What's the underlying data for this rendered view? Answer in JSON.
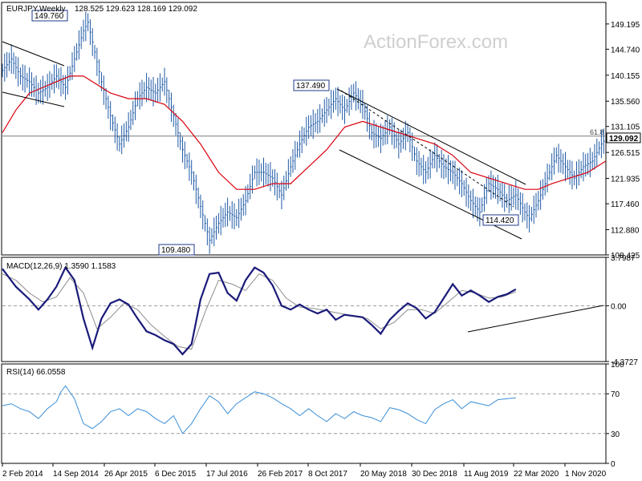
{
  "chart_data": {
    "type": "line",
    "watermark": "ActionForex.com",
    "colors": {
      "price": "#1f5aa6",
      "ma": "#d8000c",
      "macd": "#1a1a7a",
      "signal": "#8c8c8c",
      "rsi": "#3a8fd9",
      "trend": "#000000",
      "panel_border": "#000000",
      "grid_dashed": "#9a9a9a"
    },
    "x_axis": {
      "tick_labels": [
        "2 Feb 2014",
        "14 Sep 2014",
        "26 Apr 2015",
        "6 Dec 2015",
        "17 Jul 2016",
        "26 Feb 2017",
        "8 Oct 2017",
        "20 May 2018",
        "30 Dec 2018",
        "11 Aug 2019",
        "22 Mar 2020",
        "1 Nov 2020"
      ]
    },
    "price_panel": {
      "title": "EURJPY,Weekly",
      "ohlc_text": "128.525 129.623 128.169 129.092",
      "y_ticks": [
        "149.195",
        "144.740",
        "140.155",
        "135.560",
        "131.105",
        "126.515",
        "121.935",
        "117.460",
        "112.880",
        "108.425"
      ],
      "ylim": [
        108.425,
        153.0
      ],
      "last_price": "129.092",
      "fib_label": "61.8",
      "fib_level": 129.4,
      "annotations": [
        {
          "text": "149.760",
          "value": 149.76
        },
        {
          "text": "109.480",
          "value": 109.48
        },
        {
          "text": "137.490",
          "value": 137.49
        },
        {
          "text": "114.420",
          "value": 114.42
        }
      ],
      "close_series": [
        [
          0,
          141
        ],
        [
          2,
          143
        ],
        [
          4,
          140
        ],
        [
          6,
          139
        ],
        [
          8,
          137
        ],
        [
          10,
          138
        ],
        [
          12,
          140
        ],
        [
          14,
          138
        ],
        [
          16,
          143
        ],
        [
          18,
          148
        ],
        [
          19,
          149.5
        ],
        [
          20,
          146
        ],
        [
          22,
          139
        ],
        [
          24,
          133
        ],
        [
          26,
          128
        ],
        [
          28,
          131
        ],
        [
          30,
          136
        ],
        [
          32,
          138
        ],
        [
          34,
          137
        ],
        [
          36,
          139
        ],
        [
          38,
          133
        ],
        [
          40,
          127
        ],
        [
          42,
          123
        ],
        [
          44,
          117
        ],
        [
          46,
          111
        ],
        [
          48,
          114
        ],
        [
          50,
          116
        ],
        [
          52,
          115
        ],
        [
          54,
          118
        ],
        [
          56,
          123
        ],
        [
          58,
          123
        ],
        [
          60,
          122
        ],
        [
          62,
          119
        ],
        [
          64,
          124
        ],
        [
          66,
          128
        ],
        [
          68,
          131
        ],
        [
          70,
          132
        ],
        [
          72,
          134
        ],
        [
          74,
          136
        ],
        [
          76,
          134
        ],
        [
          78,
          137
        ],
        [
          80,
          135
        ],
        [
          82,
          130
        ],
        [
          84,
          129
        ],
        [
          86,
          131
        ],
        [
          88,
          128
        ],
        [
          90,
          130
        ],
        [
          92,
          125
        ],
        [
          94,
          123
        ],
        [
          96,
          126
        ],
        [
          98,
          124
        ],
        [
          100,
          123
        ],
        [
          102,
          121
        ],
        [
          104,
          118
        ],
        [
          106,
          116
        ],
        [
          108,
          121
        ],
        [
          110,
          120
        ],
        [
          112,
          118
        ],
        [
          114,
          119
        ],
        [
          116,
          116
        ],
        [
          117,
          114.8
        ],
        [
          119,
          118
        ],
        [
          121,
          122
        ],
        [
          123,
          126
        ],
        [
          125,
          124
        ],
        [
          127,
          122
        ],
        [
          129,
          124
        ],
        [
          131,
          125
        ],
        [
          133,
          128
        ],
        [
          134,
          129
        ]
      ],
      "ma_series": [
        [
          0,
          130
        ],
        [
          3,
          134
        ],
        [
          6,
          137
        ],
        [
          9,
          138
        ],
        [
          12,
          139
        ],
        [
          15,
          140
        ],
        [
          18,
          140
        ],
        [
          20,
          139
        ],
        [
          24,
          137
        ],
        [
          28,
          136
        ],
        [
          32,
          136
        ],
        [
          36,
          135
        ],
        [
          40,
          132
        ],
        [
          44,
          128
        ],
        [
          48,
          123
        ],
        [
          52,
          120
        ],
        [
          56,
          120
        ],
        [
          60,
          121
        ],
        [
          64,
          121
        ],
        [
          68,
          124
        ],
        [
          72,
          127
        ],
        [
          76,
          131
        ],
        [
          80,
          132
        ],
        [
          84,
          131
        ],
        [
          88,
          130
        ],
        [
          92,
          129
        ],
        [
          96,
          128
        ],
        [
          100,
          126
        ],
        [
          104,
          123
        ],
        [
          108,
          122
        ],
        [
          112,
          121
        ],
        [
          116,
          120
        ],
        [
          119,
          120
        ],
        [
          122,
          121
        ],
        [
          126,
          122
        ],
        [
          130,
          123
        ],
        [
          134,
          125
        ]
      ]
    },
    "macd_panel": {
      "title": "MACD(12,26,9) 1.3590 1.1583",
      "y_ticks": [
        "3.7987",
        "0.00",
        "-4.3727"
      ],
      "ylim": [
        -4.3727,
        3.7987
      ],
      "macd_series": [
        [
          0,
          2.9
        ],
        [
          3,
          1.5
        ],
        [
          6,
          0.5
        ],
        [
          8,
          -0.3
        ],
        [
          10,
          0.5
        ],
        [
          12,
          1.5
        ],
        [
          14,
          3.0
        ],
        [
          16,
          2.0
        ],
        [
          18,
          -1.0
        ],
        [
          20,
          -3.3
        ],
        [
          22,
          -1.0
        ],
        [
          24,
          0.2
        ],
        [
          26,
          0.5
        ],
        [
          28,
          0.1
        ],
        [
          30,
          -1.0
        ],
        [
          32,
          -2.0
        ],
        [
          34,
          -2.3
        ],
        [
          36,
          -2.7
        ],
        [
          38,
          -3.0
        ],
        [
          40,
          -3.8
        ],
        [
          42,
          -3.0
        ],
        [
          44,
          0.5
        ],
        [
          46,
          2.5
        ],
        [
          48,
          2.6
        ],
        [
          50,
          1.0
        ],
        [
          52,
          0.4
        ],
        [
          54,
          2.0
        ],
        [
          56,
          3.0
        ],
        [
          58,
          2.6
        ],
        [
          60,
          1.6
        ],
        [
          62,
          0.0
        ],
        [
          64,
          -0.3
        ],
        [
          66,
          0.1
        ],
        [
          68,
          -0.3
        ],
        [
          70,
          -0.6
        ],
        [
          72,
          -0.3
        ],
        [
          74,
          -1.1
        ],
        [
          76,
          -0.7
        ],
        [
          78,
          -0.8
        ],
        [
          80,
          -0.9
        ],
        [
          82,
          -1.5
        ],
        [
          84,
          -2.2
        ],
        [
          86,
          -1.1
        ],
        [
          88,
          -0.4
        ],
        [
          90,
          0.2
        ],
        [
          92,
          -0.2
        ],
        [
          94,
          -1.0
        ],
        [
          96,
          -0.5
        ],
        [
          98,
          0.6
        ],
        [
          100,
          1.7
        ],
        [
          102,
          0.8
        ],
        [
          104,
          1.2
        ],
        [
          106,
          0.8
        ],
        [
          108,
          0.3
        ],
        [
          110,
          0.7
        ],
        [
          112,
          0.9
        ],
        [
          114,
          1.3
        ]
      ],
      "signal_series": [
        [
          0,
          2.5
        ],
        [
          3,
          2.0
        ],
        [
          6,
          1.0
        ],
        [
          9,
          0.3
        ],
        [
          12,
          0.7
        ],
        [
          15,
          2.2
        ],
        [
          18,
          1.0
        ],
        [
          21,
          -1.8
        ],
        [
          24,
          -0.9
        ],
        [
          27,
          0.2
        ],
        [
          30,
          -0.3
        ],
        [
          33,
          -1.5
        ],
        [
          36,
          -2.4
        ],
        [
          39,
          -3.2
        ],
        [
          42,
          -3.4
        ],
        [
          45,
          -0.5
        ],
        [
          48,
          2.0
        ],
        [
          51,
          1.7
        ],
        [
          54,
          1.2
        ],
        [
          57,
          2.5
        ],
        [
          60,
          2.0
        ],
        [
          63,
          0.6
        ],
        [
          66,
          -0.1
        ],
        [
          69,
          -0.2
        ],
        [
          72,
          -0.4
        ],
        [
          75,
          -0.6
        ],
        [
          78,
          -0.8
        ],
        [
          81,
          -1.0
        ],
        [
          84,
          -1.8
        ],
        [
          87,
          -1.3
        ],
        [
          90,
          -0.3
        ],
        [
          93,
          -0.3
        ],
        [
          96,
          -0.6
        ],
        [
          99,
          0.3
        ],
        [
          102,
          1.2
        ],
        [
          105,
          1.0
        ],
        [
          108,
          0.6
        ],
        [
          111,
          0.7
        ],
        [
          114,
          1.1
        ]
      ]
    },
    "rsi_panel": {
      "title": "RSI(14) 66.0558",
      "y_ticks": [
        "100",
        "70",
        "30",
        "0"
      ],
      "ylim": [
        0,
        100
      ],
      "levels": [
        70,
        30
      ],
      "rsi_series": [
        [
          0,
          58
        ],
        [
          2,
          60
        ],
        [
          4,
          55
        ],
        [
          6,
          52
        ],
        [
          8,
          45
        ],
        [
          10,
          55
        ],
        [
          12,
          62
        ],
        [
          13,
          72
        ],
        [
          14,
          78
        ],
        [
          16,
          65
        ],
        [
          18,
          40
        ],
        [
          20,
          35
        ],
        [
          22,
          42
        ],
        [
          24,
          52
        ],
        [
          26,
          55
        ],
        [
          28,
          48
        ],
        [
          30,
          55
        ],
        [
          32,
          52
        ],
        [
          34,
          45
        ],
        [
          36,
          40
        ],
        [
          38,
          48
        ],
        [
          40,
          30
        ],
        [
          42,
          40
        ],
        [
          44,
          55
        ],
        [
          46,
          68
        ],
        [
          48,
          62
        ],
        [
          50,
          50
        ],
        [
          52,
          60
        ],
        [
          54,
          66
        ],
        [
          56,
          72
        ],
        [
          58,
          70
        ],
        [
          60,
          66
        ],
        [
          62,
          60
        ],
        [
          64,
          55
        ],
        [
          66,
          48
        ],
        [
          68,
          55
        ],
        [
          70,
          48
        ],
        [
          72,
          42
        ],
        [
          74,
          50
        ],
        [
          76,
          45
        ],
        [
          78,
          52
        ],
        [
          80,
          48
        ],
        [
          82,
          46
        ],
        [
          84,
          42
        ],
        [
          86,
          56
        ],
        [
          88,
          54
        ],
        [
          90,
          50
        ],
        [
          92,
          44
        ],
        [
          94,
          40
        ],
        [
          96,
          54
        ],
        [
          98,
          60
        ],
        [
          100,
          64
        ],
        [
          102,
          55
        ],
        [
          104,
          62
        ],
        [
          106,
          60
        ],
        [
          108,
          58
        ],
        [
          110,
          64
        ],
        [
          112,
          65
        ],
        [
          114,
          66
        ]
      ]
    }
  }
}
